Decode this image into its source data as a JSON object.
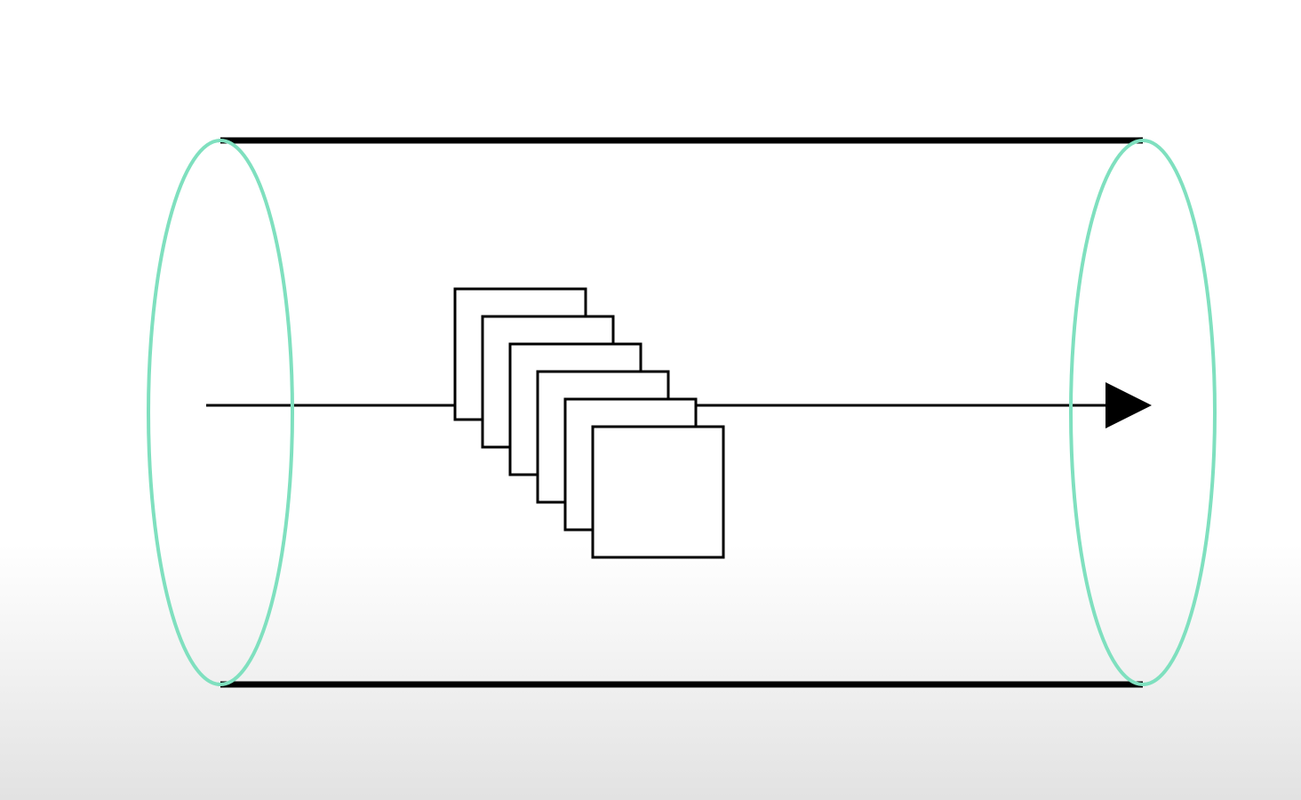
{
  "diagram": {
    "colors": {
      "background": "#ffffff",
      "cylinder_outline": "#000000",
      "cylinder_end_caps": "#7fe0bf",
      "arrow": "#000000",
      "frame_fill": "#ffffff",
      "frame_stroke": "#000000"
    },
    "stacked_frame_count": 6,
    "arrow_direction": "right"
  }
}
